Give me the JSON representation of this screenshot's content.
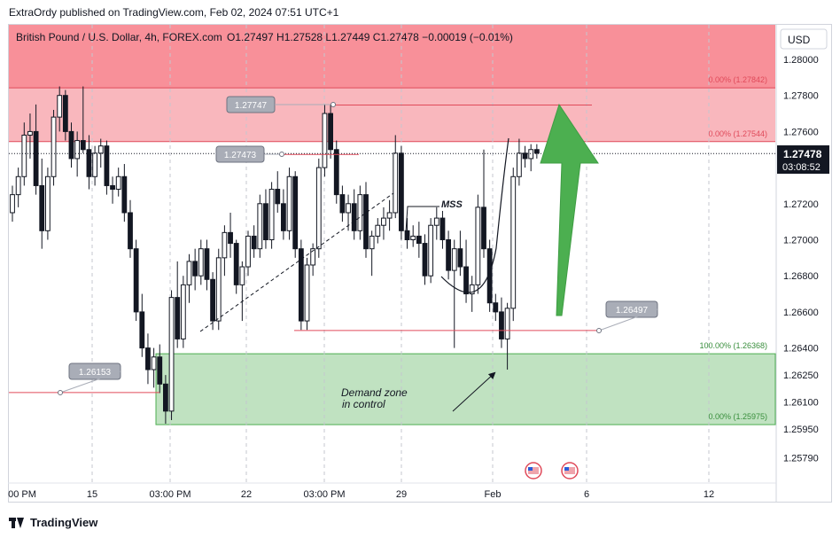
{
  "header": {
    "publisher": "ExtraOrdy published on TradingView.com, Feb 02, 2024 07:51 UTC+1"
  },
  "footer": {
    "brand": "TradingView"
  },
  "chart_data": {
    "type": "candlestick",
    "title": "British Pound / U.S. Dollar, 4h, FOREX.com",
    "ohlc_text": "O1.27497  H1.27528  L1.27449  C1.27478  −0.00019 (−0.01%)",
    "currency": "USD",
    "ylim": [
      1.2565,
      1.282
    ],
    "y_ticks": [
      {
        "v": 1.28,
        "label": "1.28000"
      },
      {
        "v": 1.278,
        "label": "1.27800"
      },
      {
        "v": 1.276,
        "label": "1.27600"
      },
      {
        "v": 1.272,
        "label": "1.27200"
      },
      {
        "v": 1.27,
        "label": "1.27000"
      },
      {
        "v": 1.268,
        "label": "1.26800"
      },
      {
        "v": 1.266,
        "label": "1.26600"
      },
      {
        "v": 1.264,
        "label": "1.26400"
      },
      {
        "v": 1.2625,
        "label": "1.26250"
      },
      {
        "v": 1.261,
        "label": "1.26100"
      },
      {
        "v": 1.2595,
        "label": "1.25950"
      },
      {
        "v": 1.2579,
        "label": "1.25790"
      }
    ],
    "x_ticks": [
      "00 PM",
      "15",
      "03:00 PM",
      "22",
      "03:00 PM",
      "29",
      "Feb",
      "6",
      "12"
    ],
    "last_price": {
      "value": 1.27478,
      "label": "1.27478",
      "countdown": "03:08:52"
    },
    "supply_zone": {
      "top": 1.27842,
      "bottom": 1.27544,
      "top_label": "0.00% (1.27842)",
      "bottom_label": "0.00% (1.27544)"
    },
    "upper_zone": {
      "top": 1.282,
      "bottom": 1.27842
    },
    "demand_zone": {
      "top": 1.26368,
      "bottom": 1.25975,
      "top_label": "100.00% (1.26368)",
      "bottom_label": "0.00% (1.25975)"
    },
    "levels": [
      {
        "value": 1.27747,
        "label": "1.27747"
      },
      {
        "value": 1.27473,
        "label": "1.27473"
      },
      {
        "value": 1.26497,
        "label": "1.26497"
      },
      {
        "value": 1.26153,
        "label": "1.26153"
      }
    ],
    "annotations": {
      "mss": "MSS",
      "demand_text_1": "Demand zone",
      "demand_text_2": "in control"
    },
    "candles": [
      [
        1.2715,
        1.273,
        1.271,
        1.2725
      ],
      [
        1.2725,
        1.274,
        1.2718,
        1.2735
      ],
      [
        1.2735,
        1.2765,
        1.273,
        1.2758
      ],
      [
        1.2758,
        1.277,
        1.2745,
        1.276
      ],
      [
        1.276,
        1.2775,
        1.2725,
        1.273
      ],
      [
        1.273,
        1.2745,
        1.2695,
        1.2705
      ],
      [
        1.2705,
        1.274,
        1.27,
        1.2735
      ],
      [
        1.2735,
        1.2772,
        1.273,
        1.2768
      ],
      [
        1.2768,
        1.2785,
        1.276,
        1.278
      ],
      [
        1.278,
        1.2783,
        1.2755,
        1.276
      ],
      [
        1.276,
        1.2765,
        1.274,
        1.2745
      ],
      [
        1.2745,
        1.276,
        1.2735,
        1.2755
      ],
      [
        1.2755,
        1.2785,
        1.2748,
        1.275
      ],
      [
        1.275,
        1.2758,
        1.2728,
        1.2735
      ],
      [
        1.2735,
        1.2752,
        1.273,
        1.2748
      ],
      [
        1.2748,
        1.2756,
        1.274,
        1.2752
      ],
      [
        1.2752,
        1.2755,
        1.2725,
        1.273
      ],
      [
        1.273,
        1.2735,
        1.272,
        1.2728
      ],
      [
        1.2728,
        1.274,
        1.2724,
        1.2735
      ],
      [
        1.2735,
        1.2742,
        1.271,
        1.2715
      ],
      [
        1.2715,
        1.2722,
        1.269,
        1.2695
      ],
      [
        1.2695,
        1.27,
        1.2655,
        1.266
      ],
      [
        1.266,
        1.267,
        1.2635,
        1.264
      ],
      [
        1.264,
        1.2648,
        1.262,
        1.2628
      ],
      [
        1.2628,
        1.264,
        1.2618,
        1.2635
      ],
      [
        1.2635,
        1.2642,
        1.2615,
        1.262
      ],
      [
        1.262,
        1.2625,
        1.2598,
        1.2605
      ],
      [
        1.2605,
        1.2672,
        1.26,
        1.2668
      ],
      [
        1.2668,
        1.2688,
        1.264,
        1.2645
      ],
      [
        1.2645,
        1.268,
        1.264,
        1.2675
      ],
      [
        1.2675,
        1.2692,
        1.2665,
        1.2688
      ],
      [
        1.2688,
        1.2695,
        1.2672,
        1.268
      ],
      [
        1.268,
        1.27,
        1.2675,
        1.2695
      ],
      [
        1.2695,
        1.27,
        1.2672,
        1.2678
      ],
      [
        1.2678,
        1.2682,
        1.265,
        1.2655
      ],
      [
        1.2655,
        1.2695,
        1.265,
        1.269
      ],
      [
        1.269,
        1.2708,
        1.268,
        1.2704
      ],
      [
        1.2704,
        1.2715,
        1.269,
        1.2698
      ],
      [
        1.2698,
        1.27,
        1.267,
        1.2675
      ],
      [
        1.2675,
        1.2688,
        1.2655,
        1.2685
      ],
      [
        1.2685,
        1.2705,
        1.268,
        1.2702
      ],
      [
        1.2702,
        1.2708,
        1.269,
        1.2695
      ],
      [
        1.2695,
        1.2725,
        1.269,
        1.272
      ],
      [
        1.272,
        1.2728,
        1.2695,
        1.27
      ],
      [
        1.27,
        1.2732,
        1.2695,
        1.2728
      ],
      [
        1.2728,
        1.2738,
        1.2715,
        1.272
      ],
      [
        1.272,
        1.2728,
        1.27,
        1.2705
      ],
      [
        1.2705,
        1.274,
        1.27,
        1.2735
      ],
      [
        1.2735,
        1.2738,
        1.269,
        1.2695
      ],
      [
        1.2695,
        1.27,
        1.265,
        1.2655
      ],
      [
        1.2655,
        1.269,
        1.265,
        1.2686
      ],
      [
        1.2686,
        1.2698,
        1.268,
        1.2695
      ],
      [
        1.2695,
        1.2745,
        1.269,
        1.274
      ],
      [
        1.274,
        1.2775,
        1.2735,
        1.277
      ],
      [
        1.277,
        1.2775,
        1.2745,
        1.275
      ],
      [
        1.275,
        1.2755,
        1.272,
        1.2725
      ],
      [
        1.2725,
        1.273,
        1.271,
        1.2715
      ],
      [
        1.2715,
        1.2725,
        1.2705,
        1.272
      ],
      [
        1.272,
        1.2728,
        1.27,
        1.2705
      ],
      [
        1.2705,
        1.273,
        1.27,
        1.2725
      ],
      [
        1.2725,
        1.2732,
        1.269,
        1.2695
      ],
      [
        1.2695,
        1.2705,
        1.268,
        1.2702
      ],
      [
        1.2702,
        1.2712,
        1.2698,
        1.2708
      ],
      [
        1.2708,
        1.2718,
        1.27,
        1.2712
      ],
      [
        1.2712,
        1.2722,
        1.2705,
        1.2715
      ],
      [
        1.2715,
        1.2758,
        1.2712,
        1.2748
      ],
      [
        1.2748,
        1.2752,
        1.27,
        1.2705
      ],
      [
        1.2705,
        1.2712,
        1.2695,
        1.27
      ],
      [
        1.27,
        1.2708,
        1.2696,
        1.2702
      ],
      [
        1.2702,
        1.271,
        1.269,
        1.2698
      ],
      [
        1.2698,
        1.2703,
        1.2675,
        1.268
      ],
      [
        1.268,
        1.2712,
        1.2676,
        1.2708
      ],
      [
        1.2708,
        1.2718,
        1.27,
        1.2712
      ],
      [
        1.2712,
        1.2716,
        1.2695,
        1.27
      ],
      [
        1.27,
        1.2705,
        1.2678,
        1.2683
      ],
      [
        1.2683,
        1.27,
        1.264,
        1.2695
      ],
      [
        1.2695,
        1.2705,
        1.268,
        1.2685
      ],
      [
        1.2685,
        1.27,
        1.2665,
        1.267
      ],
      [
        1.267,
        1.268,
        1.266,
        1.2675
      ],
      [
        1.2675,
        1.2725,
        1.267,
        1.2718
      ],
      [
        1.2718,
        1.275,
        1.269,
        1.2695
      ],
      [
        1.2695,
        1.27,
        1.266,
        1.2665
      ],
      [
        1.2665,
        1.267,
        1.2655,
        1.266
      ],
      [
        1.266,
        1.2668,
        1.264,
        1.2645
      ],
      [
        1.2645,
        1.2665,
        1.2628,
        1.2662
      ],
      [
        1.2662,
        1.274,
        1.2655,
        1.2735
      ],
      [
        1.2735,
        1.2756,
        1.273,
        1.2748
      ],
      [
        1.2748,
        1.2752,
        1.274,
        1.2745
      ],
      [
        1.2745,
        1.2753,
        1.2738,
        1.275
      ],
      [
        1.275,
        1.2753,
        1.2745,
        1.2748
      ]
    ]
  }
}
